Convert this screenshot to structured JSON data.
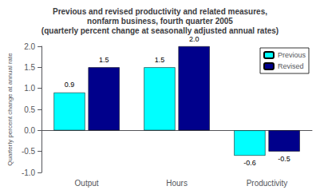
{
  "chart_data": {
    "type": "bar",
    "title": "Previous and revised productivity and related measures,\nnonfarm business, fourth quarter 2005\n(quarterly percent change at seasonally adjusted annual rates)",
    "ylabel": "Quarterly percent change at annual rate",
    "categories": [
      "Output",
      "Hours",
      "Productivity"
    ],
    "series": [
      {
        "name": "Previous",
        "color": "#00FFFF",
        "values": [
          0.9,
          1.5,
          -0.6
        ]
      },
      {
        "name": "Revised",
        "color": "#00008B",
        "values": [
          1.5,
          2.0,
          -0.5
        ],
        "value_labels": [
          "1.5",
          "2.0",
          "-0.5"
        ]
      }
    ],
    "ylim": [
      -1.0,
      2.0
    ],
    "yticks": [
      {
        "value": -1.0,
        "label": "-1.0"
      },
      -0.5,
      {
        "value": 0.0,
        "label": "0.0"
      },
      0.5,
      {
        "value": 1.0,
        "label": "1.0"
      },
      1.5,
      {
        "value": 2.0,
        "label": "2.0"
      }
    ],
    "grid": false,
    "legend": "upper right",
    "data_labels": true
  }
}
